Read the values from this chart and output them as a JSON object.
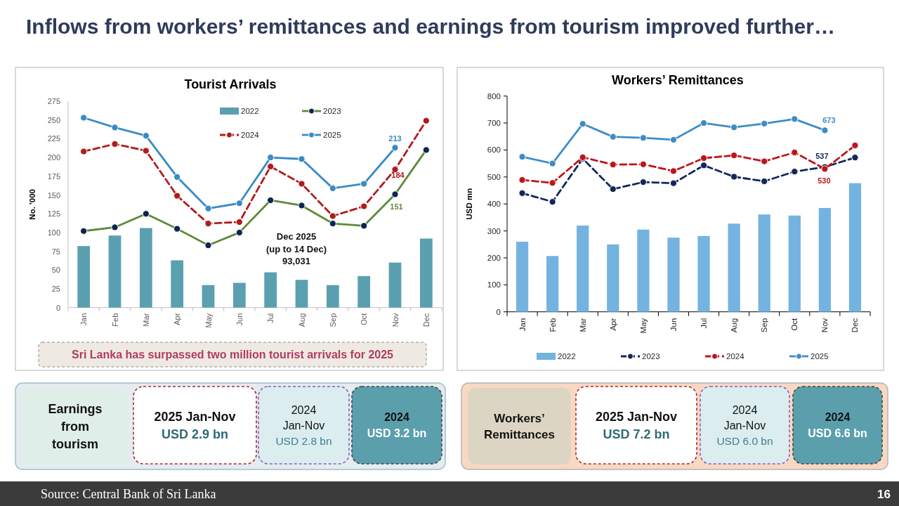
{
  "chart_data": [
    {
      "type": "other",
      "title": "Inflows from workers’ remittances and earnings from tourism improved further…"
    },
    {
      "type": "bar",
      "title": "Tourist Arrivals",
      "ylabel": "No. '000",
      "categories": [
        "Jan",
        "Feb",
        "Mar",
        "Apr",
        "May",
        "Jun",
        "Jul",
        "Aug",
        "Sep",
        "Oct",
        "Nov",
        "Dec"
      ],
      "series": [
        {
          "name": "2022",
          "type": "bar",
          "color": "#5aa0b0",
          "values": [
            82,
            96,
            106,
            63,
            30,
            33,
            47,
            37,
            30,
            42,
            60,
            92
          ]
        },
        {
          "name": "2023",
          "type": "line",
          "color": "#5e8a37",
          "colors": [
            "#0e2452",
            "#0e2452",
            "#0e2452",
            "#0e2452",
            "#0e2452",
            "#0e2452",
            "#0e2452",
            "#0e2452",
            "#0e2452",
            "#0e2452",
            "#0e2452",
            "#0e2452"
          ],
          "values": [
            102,
            107,
            125,
            105,
            83,
            100,
            143,
            136,
            112,
            109,
            151,
            210
          ],
          "value_labels": [
            null,
            null,
            null,
            null,
            null,
            null,
            null,
            null,
            null,
            null,
            "151",
            null
          ]
        },
        {
          "name": "2024",
          "type": "line",
          "color": "#b01c1c",
          "line_style": "dashed",
          "values": [
            208,
            218,
            209,
            149,
            112,
            114,
            188,
            165,
            122,
            135,
            184,
            249
          ],
          "value_labels": [
            null,
            null,
            null,
            null,
            null,
            null,
            null,
            null,
            null,
            null,
            "184",
            null
          ]
        },
        {
          "name": "2025",
          "type": "line",
          "color": "#3a8ac4",
          "values": [
            253,
            240,
            229,
            174,
            132,
            139,
            200,
            198,
            159,
            165,
            213,
            null
          ],
          "value_labels": [
            null,
            null,
            null,
            null,
            null,
            null,
            null,
            null,
            null,
            null,
            "213",
            null
          ]
        }
      ],
      "ylim": [
        0,
        275
      ],
      "yticks": [
        0,
        25,
        50,
        75,
        100,
        125,
        150,
        175,
        200,
        225,
        250,
        275
      ],
      "legend": "top",
      "marker": "circle",
      "annotations": [
        "Dec 2025\n(up to 14 Dec)\n93,031",
        "Sri Lanka has surpassed two million tourist arrivals for 2025"
      ]
    },
    {
      "type": "bar",
      "title": "Workers’ Remittances",
      "ylabel": "USD mn",
      "categories": [
        "Jan",
        "Feb",
        "Mar",
        "Apr",
        "May",
        "Jun",
        "Jul",
        "Aug",
        "Sep",
        "Oct",
        "Nov",
        "Dec"
      ],
      "series": [
        {
          "name": "2022",
          "type": "bar",
          "color": "#74b3e0",
          "values": [
            260,
            207,
            320,
            250,
            305,
            275,
            281,
            327,
            361,
            357,
            385,
            477
          ]
        },
        {
          "name": "2023",
          "type": "line",
          "color": "#13275a",
          "line_style": "dashed",
          "values": [
            440,
            408,
            568,
            455,
            481,
            477,
            543,
            501,
            484,
            520,
            537,
            572
          ],
          "value_labels": [
            null,
            null,
            null,
            null,
            null,
            null,
            null,
            null,
            null,
            null,
            "537",
            null
          ]
        },
        {
          "name": "2024",
          "type": "line",
          "color": "#c0141c",
          "line_style": "dashed",
          "values": [
            489,
            478,
            573,
            546,
            547,
            522,
            570,
            580,
            558,
            591,
            530,
            617
          ],
          "value_labels": [
            null,
            null,
            null,
            null,
            null,
            null,
            null,
            null,
            null,
            null,
            "530",
            null
          ]
        },
        {
          "name": "2025",
          "type": "line",
          "color": "#3d8cc6",
          "values": [
            575,
            550,
            697,
            649,
            645,
            638,
            700,
            684,
            698,
            715,
            673,
            null
          ],
          "value_labels": [
            null,
            null,
            null,
            null,
            null,
            null,
            null,
            null,
            null,
            null,
            "673",
            null
          ]
        }
      ],
      "ylim": [
        0,
        800
      ],
      "yticks": [
        0,
        100,
        200,
        300,
        400,
        500,
        600,
        700,
        800
      ],
      "legend": "bottom",
      "marker": "circle"
    },
    {
      "type": "other",
      "title": "Earnings from tourism",
      "annotations": [
        "2025 Jan-Nov",
        "USD 2.9 bn",
        "2024 Jan-Nov",
        "USD 2.8 bn",
        "2024",
        "USD 3.2 bn"
      ]
    },
    {
      "type": "other",
      "title": "Workers’ Remittances",
      "annotations": [
        "2025 Jan-Nov",
        "USD 7.2 bn",
        "2024 Jan-Nov",
        "USD 6.0 bn",
        "2024",
        "USD 6.6 bn"
      ]
    },
    {
      "type": "other",
      "annotations": [
        "Source: Central Bank of Sri Lanka",
        "16"
      ]
    }
  ]
}
